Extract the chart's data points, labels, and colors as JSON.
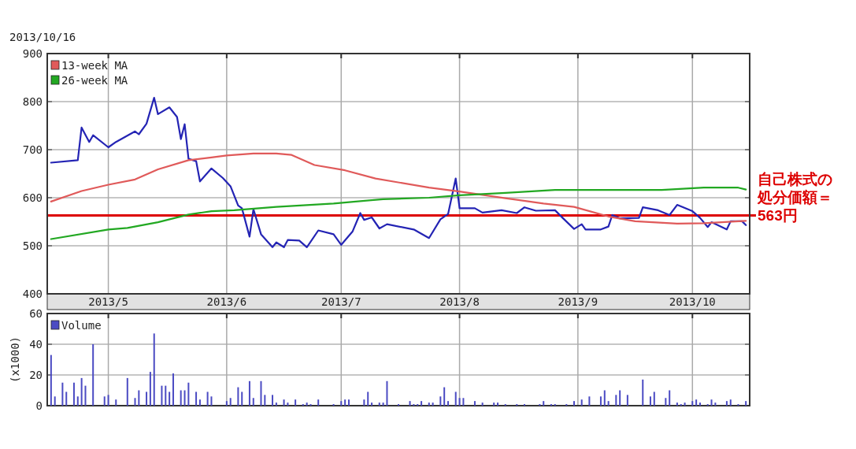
{
  "chart_data": [
    {
      "type": "line",
      "subtitle": "2013/10/16",
      "xlim": [
        "2013-04-15",
        "2013-10-16"
      ],
      "xticks": [
        {
          "value": "2013-05-01",
          "label": "2013/5"
        },
        {
          "value": "2013-06-01",
          "label": "2013/6"
        },
        {
          "value": "2013-07-01",
          "label": "2013/7"
        },
        {
          "value": "2013-08-01",
          "label": "2013/8"
        },
        {
          "value": "2013-09-01",
          "label": "2013/9"
        },
        {
          "value": "2013-10-01",
          "label": "2013/10"
        }
      ],
      "ylim": [
        400,
        900
      ],
      "yticks": [
        400,
        500,
        600,
        700,
        800,
        900
      ],
      "grid": true,
      "legend": "top left",
      "ref_lines": [
        {
          "axis": "y",
          "value": 563,
          "label": "自己株式の処分価額＝563円",
          "color": "#dd0000"
        }
      ],
      "series": [
        {
          "color": "#2424b4",
          "x": [
            "2013-04-16",
            "2013-04-23",
            "2013-04-24",
            "2013-04-26",
            "2013-04-27",
            "2013-05-01",
            "2013-05-03",
            "2013-05-08",
            "2013-05-09",
            "2013-05-11",
            "2013-05-13",
            "2013-05-14",
            "2013-05-17",
            "2013-05-19",
            "2013-05-20",
            "2013-05-21",
            "2013-05-22",
            "2013-05-24",
            "2013-05-25",
            "2013-05-28",
            "2013-05-31",
            "2013-06-02",
            "2013-06-04",
            "2013-06-05",
            "2013-06-07",
            "2013-06-08",
            "2013-06-10",
            "2013-06-13",
            "2013-06-14",
            "2013-06-16",
            "2013-06-17",
            "2013-06-20",
            "2013-06-22",
            "2013-06-25",
            "2013-06-29",
            "2013-07-01",
            "2013-07-04",
            "2013-07-06",
            "2013-07-07",
            "2013-07-09",
            "2013-07-11",
            "2013-07-13",
            "2013-07-20",
            "2013-07-24",
            "2013-07-27",
            "2013-07-29",
            "2013-07-31",
            "2013-08-01",
            "2013-08-05",
            "2013-08-07",
            "2013-08-12",
            "2013-08-16",
            "2013-08-18",
            "2013-08-21",
            "2013-08-26",
            "2013-08-28",
            "2013-08-31",
            "2013-09-02",
            "2013-09-03",
            "2013-09-07",
            "2013-09-09",
            "2013-09-10",
            "2013-09-12",
            "2013-09-17",
            "2013-09-18",
            "2013-09-22",
            "2013-09-25",
            "2013-09-27",
            "2013-10-01",
            "2013-10-03",
            "2013-10-05",
            "2013-10-06",
            "2013-10-10",
            "2013-10-11",
            "2013-10-14",
            "2013-10-15"
          ],
          "values": [
            673,
            678,
            746,
            716,
            730,
            705,
            716,
            738,
            732,
            754,
            808,
            774,
            788,
            768,
            722,
            753,
            681,
            676,
            634,
            661,
            641,
            624,
            584,
            578,
            519,
            576,
            524,
            497,
            507,
            497,
            512,
            511,
            497,
            532,
            524,
            502,
            530,
            568,
            554,
            559,
            536,
            545,
            534,
            516,
            555,
            566,
            640,
            578,
            578,
            569,
            574,
            568,
            580,
            573,
            574,
            558,
            535,
            545,
            534,
            534,
            540,
            564,
            557,
            558,
            580,
            574,
            564,
            585,
            572,
            558,
            539,
            549,
            534,
            551,
            551,
            543
          ]
        },
        {
          "name": "13-week MA",
          "color": "#e05a5a",
          "x": [
            "2013-04-16",
            "2013-04-24",
            "2013-05-01",
            "2013-05-08",
            "2013-05-14",
            "2013-05-22",
            "2013-05-28",
            "2013-06-01",
            "2013-06-08",
            "2013-06-14",
            "2013-06-18",
            "2013-06-24",
            "2013-07-02",
            "2013-07-10",
            "2013-07-24",
            "2013-08-01",
            "2013-08-13",
            "2013-08-23",
            "2013-08-31",
            "2013-09-09",
            "2013-09-16",
            "2013-09-27",
            "2013-10-04",
            "2013-10-15"
          ],
          "values": [
            592,
            614,
            627,
            638,
            659,
            678,
            684,
            688,
            692,
            692,
            689,
            668,
            657,
            640,
            621,
            613,
            599,
            588,
            581,
            561,
            551,
            546,
            547,
            552
          ]
        },
        {
          "name": "26-week MA",
          "color": "#22a822",
          "x": [
            "2013-04-16",
            "2013-05-01",
            "2013-05-06",
            "2013-05-14",
            "2013-05-22",
            "2013-05-28",
            "2013-06-03",
            "2013-06-14",
            "2013-06-29",
            "2013-07-12",
            "2013-07-24",
            "2013-08-01",
            "2013-08-13",
            "2013-08-26",
            "2013-09-23",
            "2013-10-04",
            "2013-10-13",
            "2013-10-15"
          ],
          "values": [
            514,
            534,
            537,
            549,
            565,
            572,
            574,
            581,
            588,
            597,
            600,
            605,
            610,
            616,
            616,
            621,
            621,
            617
          ]
        }
      ]
    },
    {
      "type": "bar",
      "ylabel": "(x1000)",
      "xlim": [
        "2013-04-15",
        "2013-10-16"
      ],
      "xticks": [
        {
          "value": "2013-05-01",
          "label": null
        },
        {
          "value": "2013-06-01",
          "label": null
        },
        {
          "value": "2013-07-01",
          "label": null
        },
        {
          "value": "2013-08-01",
          "label": null
        },
        {
          "value": "2013-09-01",
          "label": null
        },
        {
          "value": "2013-10-01",
          "label": null
        }
      ],
      "ylim": [
        0,
        60
      ],
      "yticks": [
        0,
        20,
        40,
        60
      ],
      "grid": true,
      "legend": "top left",
      "tick_labels": "y",
      "series": [
        {
          "name": "Volume",
          "color": "#4b4bc3",
          "x": [
            "2013-04-16",
            "2013-04-17",
            "2013-04-19",
            "2013-04-20",
            "2013-04-22",
            "2013-04-23",
            "2013-04-24",
            "2013-04-25",
            "2013-04-27",
            "2013-04-30",
            "2013-05-01",
            "2013-05-03",
            "2013-05-06",
            "2013-05-08",
            "2013-05-09",
            "2013-05-11",
            "2013-05-12",
            "2013-05-13",
            "2013-05-15",
            "2013-05-16",
            "2013-05-17",
            "2013-05-18",
            "2013-05-20",
            "2013-05-21",
            "2013-05-22",
            "2013-05-24",
            "2013-05-25",
            "2013-05-27",
            "2013-05-28",
            "2013-06-01",
            "2013-06-02",
            "2013-06-04",
            "2013-06-05",
            "2013-06-07",
            "2013-06-08",
            "2013-06-10",
            "2013-06-11",
            "2013-06-13",
            "2013-06-14",
            "2013-06-16",
            "2013-06-17",
            "2013-06-19",
            "2013-06-21",
            "2013-06-22",
            "2013-06-23",
            "2013-06-25",
            "2013-06-29",
            "2013-07-01",
            "2013-07-02",
            "2013-07-03",
            "2013-07-07",
            "2013-07-08",
            "2013-07-09",
            "2013-07-11",
            "2013-07-12",
            "2013-07-13",
            "2013-07-16",
            "2013-07-19",
            "2013-07-20",
            "2013-07-21",
            "2013-07-22",
            "2013-07-24",
            "2013-07-25",
            "2013-07-27",
            "2013-07-28",
            "2013-07-29",
            "2013-07-31",
            "2013-08-01",
            "2013-08-02",
            "2013-08-05",
            "2013-08-07",
            "2013-08-10",
            "2013-08-11",
            "2013-08-13",
            "2013-08-16",
            "2013-08-18",
            "2013-08-22",
            "2013-08-23",
            "2013-08-25",
            "2013-08-26",
            "2013-08-29",
            "2013-08-31",
            "2013-09-02",
            "2013-09-04",
            "2013-09-07",
            "2013-09-08",
            "2013-09-09",
            "2013-09-11",
            "2013-09-12",
            "2013-09-14",
            "2013-09-18",
            "2013-09-20",
            "2013-09-21",
            "2013-09-24",
            "2013-09-25",
            "2013-09-27",
            "2013-09-28",
            "2013-09-29",
            "2013-10-01",
            "2013-10-02",
            "2013-10-03",
            "2013-10-05",
            "2013-10-06",
            "2013-10-07",
            "2013-10-10",
            "2013-10-11",
            "2013-10-13",
            "2013-10-15"
          ],
          "values": [
            33,
            6,
            15,
            9,
            15,
            6,
            18,
            13,
            40,
            6,
            7,
            4,
            18,
            5,
            10,
            9,
            22,
            47,
            13,
            13,
            9,
            21,
            10,
            10,
            15,
            9,
            4,
            9,
            6,
            3,
            5,
            12,
            9,
            16,
            5,
            16,
            7,
            7,
            2,
            4,
            2,
            4,
            1,
            2,
            1,
            4,
            1,
            3,
            4,
            4,
            4,
            9,
            2,
            2,
            2,
            16,
            1,
            3,
            1,
            1,
            3,
            2,
            2,
            6,
            12,
            3,
            9,
            5,
            5,
            3,
            2,
            2,
            2,
            1,
            1,
            1,
            1,
            3,
            1,
            1,
            1,
            3,
            4,
            6,
            6,
            10,
            3,
            7,
            10,
            7,
            17,
            6,
            9,
            5,
            10,
            2,
            1,
            2,
            3,
            4,
            2,
            1,
            4,
            2,
            3,
            4,
            1,
            3
          ]
        }
      ]
    }
  ]
}
